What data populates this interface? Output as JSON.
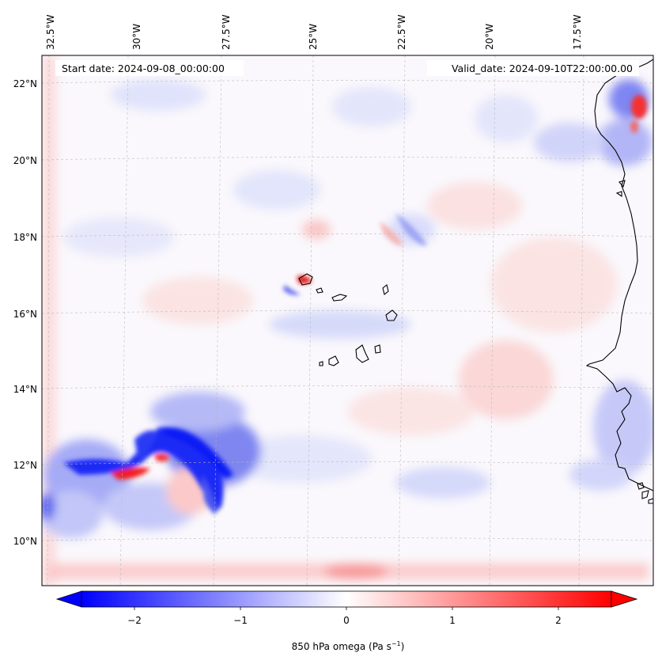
{
  "map": {
    "header": {
      "start_date": "Start date: 2024-09-08_00:00:00",
      "valid_date": "Valid_date: 2024-09-10T22:00:00.00"
    },
    "longitude_labels": [
      "32.5°W",
      "30°W",
      "27.5°W",
      "25°W",
      "22.5°W",
      "20°W",
      "17.5°W"
    ],
    "latitude_labels": [
      "22°N",
      "20°N",
      "18°N",
      "16°N",
      "14°N",
      "12°N",
      "10°N"
    ],
    "colors": {
      "negative": "#0000ff",
      "neutral": "#ffffff",
      "positive": "#ff0000",
      "coastline": "#000000",
      "gridline": "#b0b0b0"
    }
  },
  "colorbar": {
    "min": -2.5,
    "max": 2.5,
    "ticks": [
      "−2",
      "−1",
      "0",
      "1",
      "2"
    ],
    "tick_values": [
      -2,
      -1,
      0,
      1,
      2
    ],
    "label_main": "850 hPa omega (Pa s",
    "label_sup": "−1",
    "label_close": ")",
    "extend": "both"
  }
}
